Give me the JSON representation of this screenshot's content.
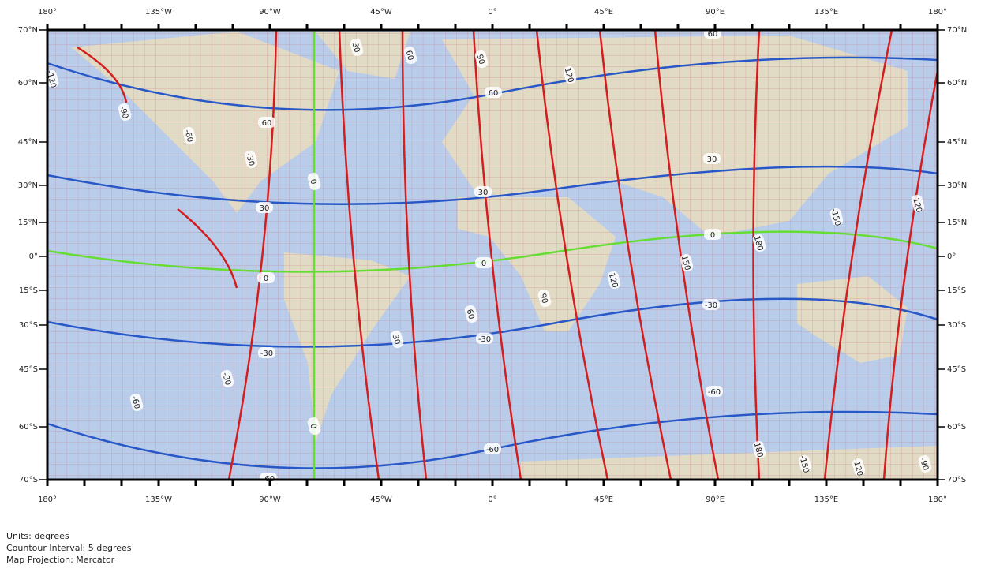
{
  "map": {
    "longitude_labels": [
      "180°",
      "135°W",
      "90°W",
      "45°W",
      "0°",
      "45°E",
      "90°E",
      "135°E",
      "180°"
    ],
    "latitude_labels": [
      "70°N",
      "60°N",
      "45°N",
      "30°N",
      "15°N",
      "0°",
      "15°S",
      "30°S",
      "45°S",
      "60°S",
      "70°S"
    ],
    "red_contour_labels": [
      "-120",
      "-90",
      "-60",
      "-30",
      "30",
      "60",
      "90",
      "120",
      "0",
      "-60",
      "-30",
      "30",
      "60",
      "90",
      "120",
      "150",
      "180",
      "-150",
      "-120",
      "0",
      "180",
      "-150",
      "-120",
      "-90"
    ],
    "blue_contour_labels": [
      "60",
      "60",
      "60",
      "30",
      "30",
      "30",
      "-30",
      "-30",
      "-30",
      "-60",
      "-60",
      "-60"
    ],
    "green_contour_labels": [
      "0",
      "0",
      "0"
    ],
    "notes": [
      "Units: degrees",
      "Countour Interval: 5 degrees",
      "Map Projection: Mercator"
    ]
  }
}
